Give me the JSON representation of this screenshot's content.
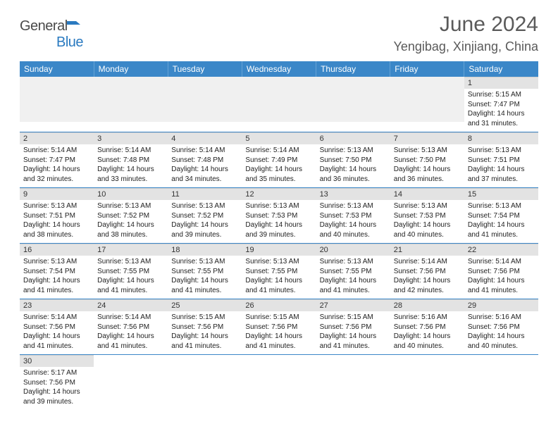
{
  "brand": {
    "name_a": "General",
    "name_b": "Blue"
  },
  "title": "June 2024",
  "location": "Yengibag, Xinjiang, China",
  "colors": {
    "header_bg": "#3b87c8",
    "header_text": "#ffffff",
    "daynum_bg": "#e3e3e3",
    "week_border": "#3b87c8",
    "spacer_bg": "#f0f0f0",
    "text": "#222222",
    "title_text": "#5a5a5a"
  },
  "fonts": {
    "base_family": "Arial",
    "title_size_pt": 23,
    "location_size_pt": 14,
    "dow_size_pt": 9,
    "cell_size_pt": 7.5
  },
  "dow": [
    "Sunday",
    "Monday",
    "Tuesday",
    "Wednesday",
    "Thursday",
    "Friday",
    "Saturday"
  ],
  "weeks": [
    [
      null,
      null,
      null,
      null,
      null,
      null,
      {
        "n": "1",
        "sunrise": "Sunrise: 5:15 AM",
        "sunset": "Sunset: 7:47 PM",
        "daylight": "Daylight: 14 hours and 31 minutes."
      }
    ],
    [
      {
        "n": "2",
        "sunrise": "Sunrise: 5:14 AM",
        "sunset": "Sunset: 7:47 PM",
        "daylight": "Daylight: 14 hours and 32 minutes."
      },
      {
        "n": "3",
        "sunrise": "Sunrise: 5:14 AM",
        "sunset": "Sunset: 7:48 PM",
        "daylight": "Daylight: 14 hours and 33 minutes."
      },
      {
        "n": "4",
        "sunrise": "Sunrise: 5:14 AM",
        "sunset": "Sunset: 7:48 PM",
        "daylight": "Daylight: 14 hours and 34 minutes."
      },
      {
        "n": "5",
        "sunrise": "Sunrise: 5:14 AM",
        "sunset": "Sunset: 7:49 PM",
        "daylight": "Daylight: 14 hours and 35 minutes."
      },
      {
        "n": "6",
        "sunrise": "Sunrise: 5:13 AM",
        "sunset": "Sunset: 7:50 PM",
        "daylight": "Daylight: 14 hours and 36 minutes."
      },
      {
        "n": "7",
        "sunrise": "Sunrise: 5:13 AM",
        "sunset": "Sunset: 7:50 PM",
        "daylight": "Daylight: 14 hours and 36 minutes."
      },
      {
        "n": "8",
        "sunrise": "Sunrise: 5:13 AM",
        "sunset": "Sunset: 7:51 PM",
        "daylight": "Daylight: 14 hours and 37 minutes."
      }
    ],
    [
      {
        "n": "9",
        "sunrise": "Sunrise: 5:13 AM",
        "sunset": "Sunset: 7:51 PM",
        "daylight": "Daylight: 14 hours and 38 minutes."
      },
      {
        "n": "10",
        "sunrise": "Sunrise: 5:13 AM",
        "sunset": "Sunset: 7:52 PM",
        "daylight": "Daylight: 14 hours and 38 minutes."
      },
      {
        "n": "11",
        "sunrise": "Sunrise: 5:13 AM",
        "sunset": "Sunset: 7:52 PM",
        "daylight": "Daylight: 14 hours and 39 minutes."
      },
      {
        "n": "12",
        "sunrise": "Sunrise: 5:13 AM",
        "sunset": "Sunset: 7:53 PM",
        "daylight": "Daylight: 14 hours and 39 minutes."
      },
      {
        "n": "13",
        "sunrise": "Sunrise: 5:13 AM",
        "sunset": "Sunset: 7:53 PM",
        "daylight": "Daylight: 14 hours and 40 minutes."
      },
      {
        "n": "14",
        "sunrise": "Sunrise: 5:13 AM",
        "sunset": "Sunset: 7:53 PM",
        "daylight": "Daylight: 14 hours and 40 minutes."
      },
      {
        "n": "15",
        "sunrise": "Sunrise: 5:13 AM",
        "sunset": "Sunset: 7:54 PM",
        "daylight": "Daylight: 14 hours and 41 minutes."
      }
    ],
    [
      {
        "n": "16",
        "sunrise": "Sunrise: 5:13 AM",
        "sunset": "Sunset: 7:54 PM",
        "daylight": "Daylight: 14 hours and 41 minutes."
      },
      {
        "n": "17",
        "sunrise": "Sunrise: 5:13 AM",
        "sunset": "Sunset: 7:55 PM",
        "daylight": "Daylight: 14 hours and 41 minutes."
      },
      {
        "n": "18",
        "sunrise": "Sunrise: 5:13 AM",
        "sunset": "Sunset: 7:55 PM",
        "daylight": "Daylight: 14 hours and 41 minutes."
      },
      {
        "n": "19",
        "sunrise": "Sunrise: 5:13 AM",
        "sunset": "Sunset: 7:55 PM",
        "daylight": "Daylight: 14 hours and 41 minutes."
      },
      {
        "n": "20",
        "sunrise": "Sunrise: 5:13 AM",
        "sunset": "Sunset: 7:55 PM",
        "daylight": "Daylight: 14 hours and 41 minutes."
      },
      {
        "n": "21",
        "sunrise": "Sunrise: 5:14 AM",
        "sunset": "Sunset: 7:56 PM",
        "daylight": "Daylight: 14 hours and 42 minutes."
      },
      {
        "n": "22",
        "sunrise": "Sunrise: 5:14 AM",
        "sunset": "Sunset: 7:56 PM",
        "daylight": "Daylight: 14 hours and 41 minutes."
      }
    ],
    [
      {
        "n": "23",
        "sunrise": "Sunrise: 5:14 AM",
        "sunset": "Sunset: 7:56 PM",
        "daylight": "Daylight: 14 hours and 41 minutes."
      },
      {
        "n": "24",
        "sunrise": "Sunrise: 5:14 AM",
        "sunset": "Sunset: 7:56 PM",
        "daylight": "Daylight: 14 hours and 41 minutes."
      },
      {
        "n": "25",
        "sunrise": "Sunrise: 5:15 AM",
        "sunset": "Sunset: 7:56 PM",
        "daylight": "Daylight: 14 hours and 41 minutes."
      },
      {
        "n": "26",
        "sunrise": "Sunrise: 5:15 AM",
        "sunset": "Sunset: 7:56 PM",
        "daylight": "Daylight: 14 hours and 41 minutes."
      },
      {
        "n": "27",
        "sunrise": "Sunrise: 5:15 AM",
        "sunset": "Sunset: 7:56 PM",
        "daylight": "Daylight: 14 hours and 41 minutes."
      },
      {
        "n": "28",
        "sunrise": "Sunrise: 5:16 AM",
        "sunset": "Sunset: 7:56 PM",
        "daylight": "Daylight: 14 hours and 40 minutes."
      },
      {
        "n": "29",
        "sunrise": "Sunrise: 5:16 AM",
        "sunset": "Sunset: 7:56 PM",
        "daylight": "Daylight: 14 hours and 40 minutes."
      }
    ],
    [
      {
        "n": "30",
        "sunrise": "Sunrise: 5:17 AM",
        "sunset": "Sunset: 7:56 PM",
        "daylight": "Daylight: 14 hours and 39 minutes."
      },
      null,
      null,
      null,
      null,
      null,
      null
    ]
  ]
}
